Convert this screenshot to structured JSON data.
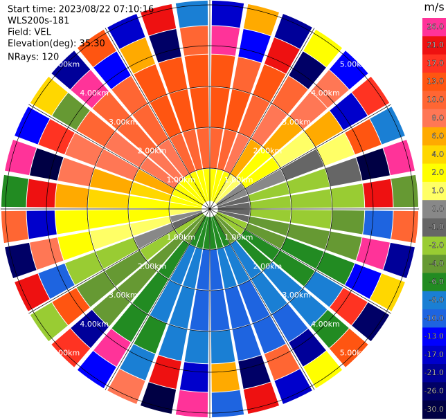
{
  "chart_data": {
    "type": "ppi",
    "header": [
      "Start time: 2023/08/22 07:10:16",
      "WLS200s-181",
      "Field: VEL",
      "Elevation(deg): 35.30",
      "NRays: 120"
    ],
    "azimuths": [
      5,
      15,
      25,
      35,
      45,
      55,
      65,
      75,
      85,
      95,
      105,
      115,
      125,
      135,
      145,
      155,
      165,
      175,
      185,
      195,
      205,
      215,
      225,
      235,
      245,
      255,
      265,
      275,
      285,
      295,
      305,
      315,
      325,
      335,
      345,
      355
    ],
    "gates_km": [
      0.2,
      1,
      2,
      3,
      3.8,
      4.5,
      5.12
    ],
    "values": [
      [
        2,
        10,
        13,
        13,
        26,
        -17
      ],
      [
        2,
        10,
        13,
        10,
        -13,
        6
      ],
      [
        2,
        8,
        10,
        13,
        21,
        -21
      ],
      [
        1,
        6,
        8,
        10,
        -26,
        2
      ],
      [
        1,
        2,
        6,
        8,
        8,
        -13
      ],
      [
        0,
        2,
        1,
        6,
        -17,
        17
      ],
      [
        0,
        0,
        -1,
        1,
        13,
        -8
      ],
      [
        -1,
        -2,
        -2,
        -1,
        -30,
        26
      ],
      [
        -1,
        -2,
        -2,
        -2,
        21,
        -4
      ],
      [
        -1,
        -2,
        -2,
        -4,
        -10,
        10
      ],
      [
        -1,
        -4,
        -4,
        -4,
        26,
        -21
      ],
      [
        -2,
        -4,
        -6,
        -6,
        -13,
        4
      ],
      [
        -2,
        -6,
        -6,
        -8,
        17,
        -26
      ],
      [
        -4,
        -6,
        -8,
        -8,
        -6,
        13
      ],
      [
        -4,
        -8,
        -8,
        -10,
        -21,
        2
      ],
      [
        -6,
        -8,
        -10,
        -10,
        10,
        -17
      ],
      [
        -6,
        -8,
        -10,
        -10,
        -26,
        21
      ],
      [
        -6,
        -10,
        -10,
        -8,
        6,
        -10
      ],
      [
        -6,
        -10,
        -10,
        -8,
        -17,
        26
      ],
      [
        -6,
        -8,
        -8,
        -8,
        21,
        -30
      ],
      [
        -6,
        -8,
        -8,
        -6,
        -8,
        8
      ],
      [
        -4,
        -6,
        -6,
        -6,
        26,
        -13
      ],
      [
        -4,
        -4,
        -4,
        -4,
        -21,
        17
      ],
      [
        -2,
        -2,
        -4,
        -4,
        13,
        -2
      ],
      [
        -1,
        0,
        -2,
        -2,
        -10,
        21
      ],
      [
        0,
        1,
        1,
        2,
        8,
        -26
      ],
      [
        1,
        2,
        2,
        2,
        -17,
        10
      ],
      [
        2,
        2,
        4,
        6,
        21,
        -6
      ],
      [
        2,
        4,
        6,
        8,
        -30,
        26
      ],
      [
        2,
        6,
        8,
        8,
        17,
        -13
      ],
      [
        2,
        8,
        8,
        10,
        -4,
        4
      ],
      [
        2,
        8,
        10,
        10,
        26,
        -21
      ],
      [
        2,
        8,
        10,
        10,
        -13,
        13
      ],
      [
        2,
        10,
        13,
        13,
        6,
        -17
      ],
      [
        2,
        10,
        13,
        13,
        -26,
        21
      ],
      [
        2,
        10,
        13,
        13,
        10,
        -8
      ]
    ],
    "range_rings": [
      {
        "value": 1,
        "label": "1.00km"
      },
      {
        "value": 2,
        "label": "2.00km"
      },
      {
        "value": 3,
        "label": "3.00km"
      },
      {
        "value": 4,
        "label": "4.00km"
      },
      {
        "value": 5,
        "label": "5.00km"
      }
    ],
    "colorbar": {
      "title": "m/s",
      "ticks": [
        {
          "value": 26,
          "label": "26.0"
        },
        {
          "value": 21,
          "label": "21.0"
        },
        {
          "value": 17,
          "label": "17.0"
        },
        {
          "value": 13,
          "label": "13.0"
        },
        {
          "value": 10,
          "label": "10.0"
        },
        {
          "value": 8,
          "label": "8.0"
        },
        {
          "value": 6,
          "label": "6.0"
        },
        {
          "value": 4,
          "label": "4.0"
        },
        {
          "value": 2,
          "label": "2.0"
        },
        {
          "value": 1,
          "label": "1.0"
        },
        {
          "value": 0,
          "label": "0.0"
        },
        {
          "value": -1,
          "label": "-1.0"
        },
        {
          "value": -2,
          "label": "-2.0"
        },
        {
          "value": -4,
          "label": "-4.0"
        },
        {
          "value": -6,
          "label": "-6.0"
        },
        {
          "value": -8,
          "label": "-8.0"
        },
        {
          "value": -10,
          "label": "-10.0"
        },
        {
          "value": -13,
          "label": "-13.0"
        },
        {
          "value": -17,
          "label": "-17.0"
        },
        {
          "value": -21,
          "label": "-21.0"
        },
        {
          "value": -26,
          "label": "-26.0"
        },
        {
          "value": -30,
          "label": "-30.0"
        }
      ],
      "colors": [
        "#ff3399",
        "#ee1111",
        "#ff3322",
        "#ff5511",
        "#ff6633",
        "#ff7755",
        "#ffaa00",
        "#ffd700",
        "#ffff00",
        "#ffff66",
        "#888888",
        "#666666",
        "#99cc33",
        "#669933",
        "#228b22",
        "#1a7fd4",
        "#1e64e0",
        "#0000ff",
        "#0000cc",
        "#000099",
        "#000066",
        "#000044"
      ]
    }
  }
}
